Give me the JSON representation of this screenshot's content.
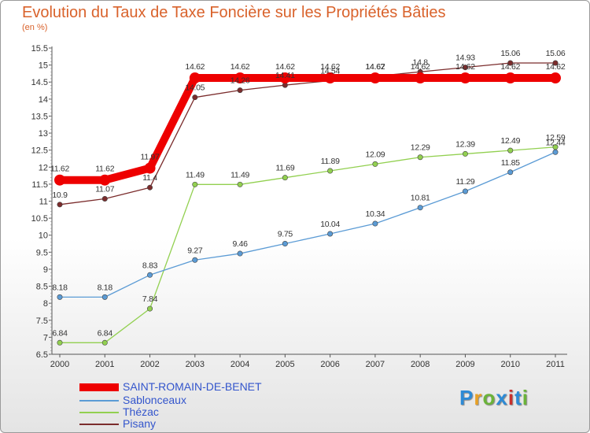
{
  "header": {
    "title": "Evolution du Taux de Taxe Foncière sur les Propriétés Bâties",
    "subtitle": "(en %)"
  },
  "logo": {
    "text": "Proxiti",
    "colors": [
      "#2e8bd6",
      "#e8a126",
      "#6bb33a",
      "#2e8bd6",
      "#c9302c",
      "#2e8bd6",
      "#6bb33a"
    ]
  },
  "chart_data": {
    "type": "line",
    "categories": [
      "2000",
      "2001",
      "2002",
      "2003",
      "2004",
      "2005",
      "2006",
      "2007",
      "2008",
      "2009",
      "2010",
      "2011"
    ],
    "ylim": [
      6.5,
      15.5
    ],
    "yticks": [
      "6.5",
      "7",
      "7.5",
      "8",
      "8.5",
      "9",
      "9.5",
      "10",
      "10.5",
      "11",
      "11.5",
      "12",
      "12.5",
      "13",
      "13.5",
      "14",
      "14.5",
      "15",
      "15.5"
    ],
    "grid": false,
    "legend_position": "bottom-left",
    "series": [
      {
        "name": "SAINT-ROMAIN-DE-BENET",
        "color": "#ee0000",
        "values": [
          11.62,
          11.62,
          11.97,
          14.62,
          14.62,
          14.62,
          14.62,
          14.62,
          14.62,
          14.62,
          14.62,
          14.62
        ],
        "labels": [
          "11.62",
          "11.62",
          "11.97",
          "14.62",
          "14.62",
          "14.62",
          "14.62",
          "14.62",
          "14.62",
          "14.62",
          "14.62",
          "14.62"
        ]
      },
      {
        "name": "Sablonceaux",
        "color": "#5b9bd5",
        "values": [
          8.18,
          8.18,
          8.83,
          9.27,
          9.46,
          9.75,
          10.04,
          10.34,
          10.81,
          11.29,
          11.85,
          12.44
        ],
        "labels": [
          "8.18",
          "8.18",
          "8.83",
          "9.27",
          "9.46",
          "9.75",
          "10.04",
          "10.34",
          "10.81",
          "11.29",
          "11.85",
          "12.44"
        ]
      },
      {
        "name": "Thézac",
        "color": "#92d050",
        "values": [
          6.84,
          6.84,
          7.84,
          11.49,
          11.49,
          11.69,
          11.89,
          12.09,
          12.29,
          12.39,
          12.49,
          12.59
        ],
        "labels": [
          "6.84",
          "6.84",
          "7.84",
          "11.49",
          "11.49",
          "11.69",
          "11.89",
          "12.09",
          "12.29",
          "12.39",
          "12.49",
          "12.59"
        ]
      },
      {
        "name": "Pisany",
        "color": "#7b2c2c",
        "values": [
          10.9,
          11.07,
          11.4,
          14.05,
          14.26,
          14.41,
          14.54,
          14.67,
          14.8,
          14.93,
          15.06,
          15.06
        ],
        "labels": [
          "10.9",
          "11.07",
          "11.4",
          "14.05",
          "14.26",
          "14.41",
          "14.54",
          "14.67",
          "14.8",
          "14.93",
          "15.06",
          "15.06"
        ]
      }
    ]
  }
}
